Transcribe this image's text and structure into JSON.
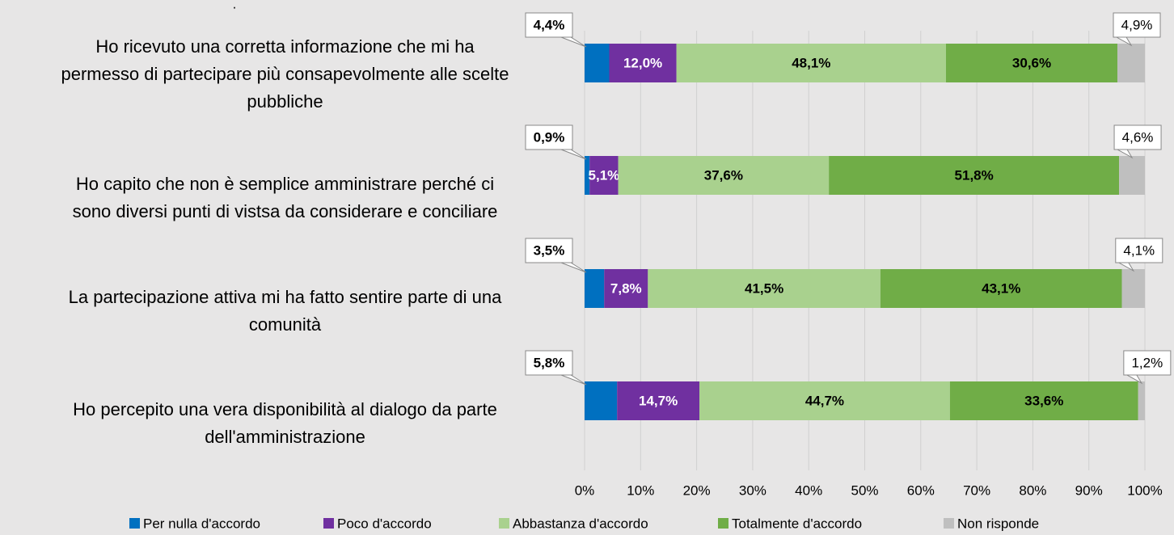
{
  "chart_data": {
    "type": "stacked-barh",
    "annotation": ".",
    "categories": [
      "Ho ricevuto una corretta informazione che mi ha\npermesso di partecipare più consapevolmente alle scelte\npubbliche",
      "Ho capito che non è semplice amministrare perché ci\nsono diversi punti di vistsa da considerare e conciliare",
      "La partecipazione attiva mi ha fatto sentire parte di una\ncomunità",
      "Ho percepito una vera disponibilità al dialogo da parte\ndell'amministrazione"
    ],
    "series": [
      {
        "name": "Per nulla d'accordo",
        "color": "#0070c0",
        "values": [
          4.4,
          0.9,
          3.5,
          5.8
        ],
        "value_labels": [
          "4,4%",
          "0,9%",
          "3,5%",
          "5,8%"
        ]
      },
      {
        "name": "Poco d'accordo",
        "color": "#7030a0",
        "values": [
          12.0,
          5.1,
          7.8,
          14.7
        ],
        "value_labels": [
          "12,0%",
          "5,1%",
          "7,8%",
          "14,7%"
        ]
      },
      {
        "name": "Abbastanza d'accordo",
        "color": "#a9d18e",
        "values": [
          48.1,
          37.6,
          41.5,
          44.7
        ],
        "value_labels": [
          "48,1%",
          "37,6%",
          "41,5%",
          "44,7%"
        ]
      },
      {
        "name": "Totalmente d'accordo",
        "color": "#70ad47",
        "values": [
          30.6,
          51.8,
          43.1,
          33.6
        ],
        "value_labels": [
          "30,6%",
          "51,8%",
          "43,1%",
          "33,6%"
        ]
      },
      {
        "name": "Non risponde",
        "color": "#bfbfbf",
        "values": [
          4.9,
          4.6,
          4.1,
          1.2
        ],
        "value_labels": [
          "4,9%",
          "4,6%",
          "4,1%",
          "1,2%"
        ]
      }
    ],
    "xlim": [
      0,
      100
    ],
    "xticks": [
      {
        "value": 0,
        "label": "0%"
      },
      {
        "value": 10,
        "label": "10%"
      },
      {
        "value": 20,
        "label": "20%"
      },
      {
        "value": 30,
        "label": "30%"
      },
      {
        "value": 40,
        "label": "40%"
      },
      {
        "value": 50,
        "label": "50%"
      },
      {
        "value": 60,
        "label": "60%"
      },
      {
        "value": 70,
        "label": "70%"
      },
      {
        "value": 80,
        "label": "80%"
      },
      {
        "value": 90,
        "label": "90%"
      },
      {
        "value": 100,
        "label": "100%"
      }
    ],
    "grid": true,
    "legend": "bottom"
  }
}
